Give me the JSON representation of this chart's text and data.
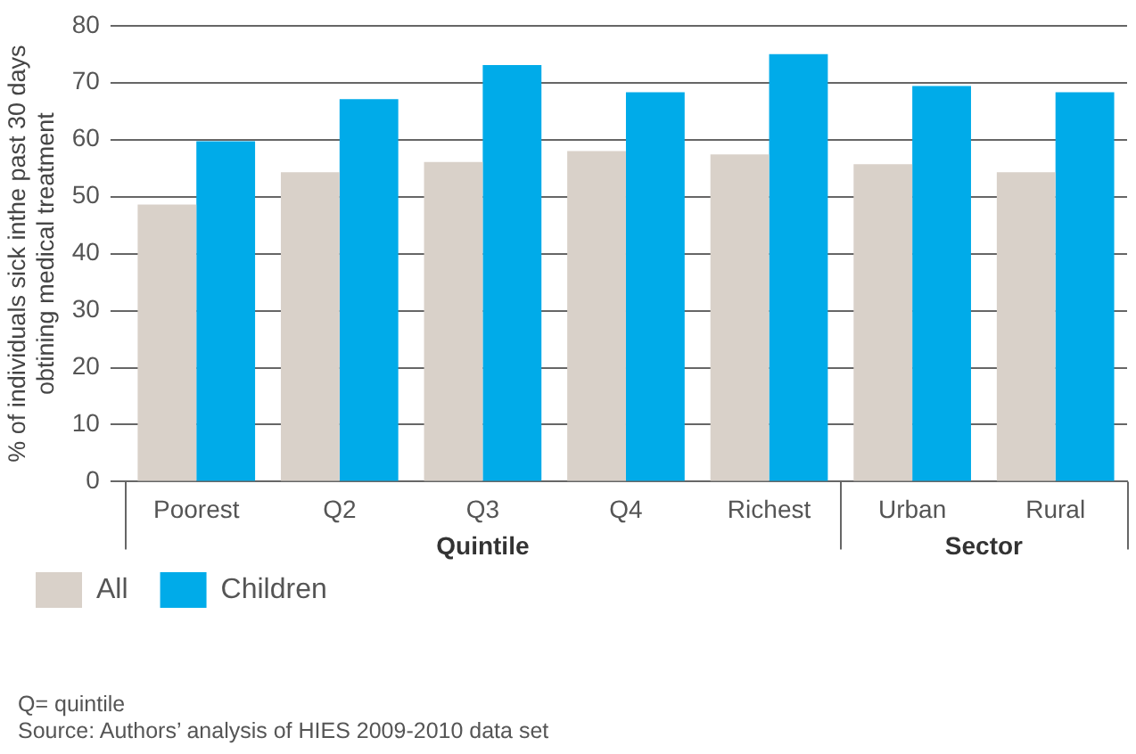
{
  "chart_data": {
    "type": "bar",
    "ylabel": "% of individuals sick inthe past 30 days\nobtining medical treatment",
    "categories": [
      "Poorest",
      "Q2",
      "Q3",
      "Q4",
      "Richest",
      "Urban",
      "Rural"
    ],
    "series": [
      {
        "name": "All",
        "color": "#d9d1c9",
        "values": [
          48.6,
          54.3,
          56.1,
          58.0,
          57.4,
          55.7,
          54.3
        ]
      },
      {
        "name": "Children",
        "color": "#00abe9",
        "values": [
          59.7,
          67.1,
          73.1,
          68.3,
          75.0,
          69.4,
          68.3
        ]
      }
    ],
    "ylim": [
      0,
      80
    ],
    "yticks": [
      0,
      10,
      20,
      30,
      40,
      50,
      60,
      70,
      80
    ],
    "grid": "y",
    "legend": "bottom",
    "annotations": [
      "Quintile",
      "Sector",
      "Q= quintile",
      "Source: Authors’ analysis of HIES 2009-2010 data set"
    ]
  }
}
